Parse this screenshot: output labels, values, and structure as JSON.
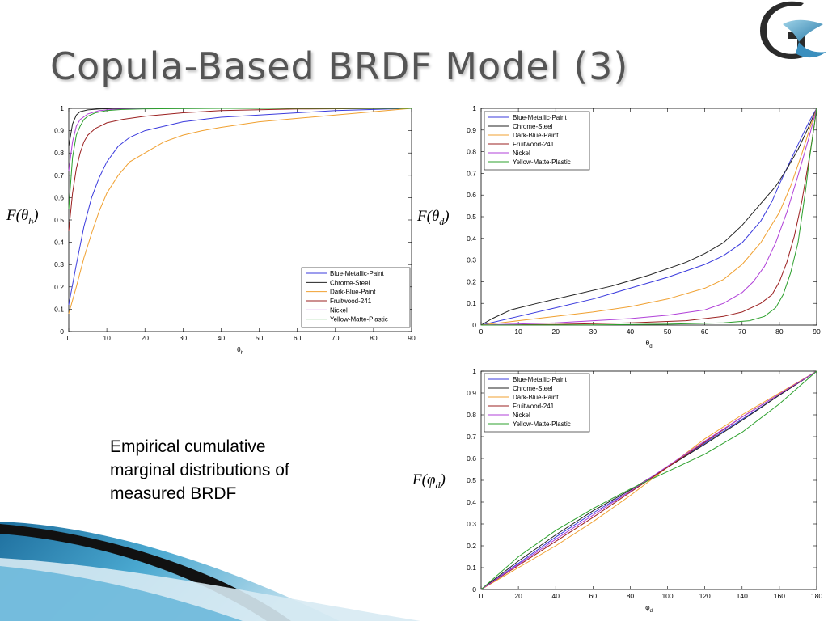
{
  "slide": {
    "title": "Copula-Based BRDF Model (3)",
    "caption_lines": [
      "Empirical cumulative",
      "marginal distributions of",
      "measured BRDF"
    ],
    "ylabels": [
      {
        "func": "F(",
        "sym": "θ",
        "sub": "h",
        "close": ")"
      },
      {
        "func": "F(",
        "sym": "θ",
        "sub": "d",
        "close": ")"
      },
      {
        "func": "F(",
        "sym": "φ",
        "sub": "d",
        "close": ")"
      }
    ]
  },
  "colors": {
    "title": "#555555",
    "Blue-Metallic-Paint": "#3b3bdd",
    "Chrome-Steel": "#222222",
    "Dark-Blue-Paint": "#f0a030",
    "Fruitwood-241": "#9b2020",
    "Nickel": "#b040d8",
    "Yellow-Matte-Plastic": "#2ca02c"
  },
  "chart_data": [
    {
      "type": "line",
      "title": "",
      "xlabel": "θh",
      "ylabel": "",
      "xlim": [
        0,
        90
      ],
      "ylim": [
        0,
        1
      ],
      "xticks": [
        0,
        10,
        20,
        30,
        40,
        50,
        60,
        70,
        80,
        90
      ],
      "yticks": [
        0,
        0.1,
        0.2,
        0.3,
        0.4,
        0.5,
        0.6,
        0.7,
        0.8,
        0.9,
        1
      ],
      "legend": "bottom-right",
      "series": [
        {
          "name": "Blue-Metallic-Paint",
          "x": [
            0,
            2,
            4,
            6,
            8,
            10,
            13,
            16,
            20,
            25,
            30,
            40,
            50,
            60,
            70,
            80,
            90
          ],
          "y": [
            0.12,
            0.3,
            0.47,
            0.6,
            0.69,
            0.76,
            0.83,
            0.87,
            0.9,
            0.92,
            0.94,
            0.96,
            0.97,
            0.98,
            0.99,
            0.995,
            1.0
          ]
        },
        {
          "name": "Chrome-Steel",
          "x": [
            0,
            1,
            2,
            3,
            5,
            8,
            12,
            20,
            30,
            90
          ],
          "y": [
            0.83,
            0.93,
            0.97,
            0.985,
            0.993,
            0.997,
            0.999,
            1.0,
            1.0,
            1.0
          ]
        },
        {
          "name": "Dark-Blue-Paint",
          "x": [
            0,
            2,
            4,
            6,
            8,
            10,
            13,
            16,
            20,
            25,
            30,
            35,
            40,
            50,
            60,
            70,
            80,
            90
          ],
          "y": [
            0.08,
            0.2,
            0.33,
            0.44,
            0.54,
            0.62,
            0.7,
            0.76,
            0.8,
            0.85,
            0.88,
            0.9,
            0.915,
            0.94,
            0.955,
            0.97,
            0.985,
            1.0
          ]
        },
        {
          "name": "Fruitwood-241",
          "x": [
            0,
            1,
            2,
            3,
            4,
            5,
            7,
            10,
            14,
            20,
            30,
            40,
            60,
            90
          ],
          "y": [
            0.45,
            0.62,
            0.73,
            0.8,
            0.85,
            0.88,
            0.91,
            0.935,
            0.95,
            0.965,
            0.98,
            0.99,
            0.997,
            1.0
          ]
        },
        {
          "name": "Nickel",
          "x": [
            0,
            1,
            2,
            3,
            5,
            8,
            12,
            20,
            40,
            90
          ],
          "y": [
            0.72,
            0.85,
            0.92,
            0.95,
            0.975,
            0.99,
            0.996,
            0.999,
            1.0,
            1.0
          ]
        },
        {
          "name": "Yellow-Matte-Plastic",
          "x": [
            0,
            1,
            2,
            3,
            4,
            5,
            7,
            10,
            14,
            20,
            40,
            90
          ],
          "y": [
            0.55,
            0.78,
            0.88,
            0.92,
            0.95,
            0.965,
            0.98,
            0.99,
            0.995,
            0.998,
            1.0,
            1.0
          ]
        }
      ]
    },
    {
      "type": "line",
      "title": "",
      "xlabel": "θd",
      "ylabel": "",
      "xlim": [
        0,
        90
      ],
      "ylim": [
        0,
        1
      ],
      "xticks": [
        0,
        10,
        20,
        30,
        40,
        50,
        60,
        70,
        80,
        90
      ],
      "yticks": [
        0,
        0.1,
        0.2,
        0.3,
        0.4,
        0.5,
        0.6,
        0.7,
        0.8,
        0.9,
        1
      ],
      "legend": "top-left",
      "series": [
        {
          "name": "Blue-Metallic-Paint",
          "x": [
            0,
            10,
            20,
            30,
            40,
            50,
            60,
            65,
            70,
            75,
            78,
            80,
            83,
            86,
            88,
            89,
            90
          ],
          "y": [
            0,
            0.04,
            0.08,
            0.12,
            0.17,
            0.22,
            0.28,
            0.32,
            0.38,
            0.48,
            0.57,
            0.65,
            0.76,
            0.87,
            0.94,
            0.97,
            1.0
          ]
        },
        {
          "name": "Chrome-Steel",
          "x": [
            0,
            3,
            8,
            15,
            25,
            35,
            45,
            55,
            60,
            65,
            70,
            73,
            76,
            79,
            82,
            85,
            88,
            90
          ],
          "y": [
            0,
            0.03,
            0.07,
            0.1,
            0.14,
            0.18,
            0.23,
            0.29,
            0.33,
            0.38,
            0.46,
            0.52,
            0.58,
            0.64,
            0.72,
            0.81,
            0.92,
            1.0
          ]
        },
        {
          "name": "Dark-Blue-Paint",
          "x": [
            0,
            10,
            20,
            30,
            40,
            50,
            60,
            65,
            70,
            75,
            80,
            83,
            86,
            88,
            90
          ],
          "y": [
            0,
            0.02,
            0.04,
            0.06,
            0.085,
            0.12,
            0.17,
            0.21,
            0.28,
            0.38,
            0.52,
            0.64,
            0.79,
            0.9,
            1.0
          ]
        },
        {
          "name": "Fruitwood-241",
          "x": [
            0,
            20,
            40,
            55,
            65,
            70,
            75,
            78,
            80,
            82,
            84,
            86,
            88,
            89,
            90
          ],
          "y": [
            0,
            0.003,
            0.01,
            0.02,
            0.04,
            0.06,
            0.1,
            0.14,
            0.2,
            0.29,
            0.41,
            0.57,
            0.77,
            0.88,
            1.0
          ]
        },
        {
          "name": "Nickel",
          "x": [
            0,
            20,
            40,
            50,
            60,
            65,
            70,
            73,
            76,
            79,
            82,
            85,
            88,
            90
          ],
          "y": [
            0,
            0.01,
            0.03,
            0.045,
            0.07,
            0.1,
            0.15,
            0.2,
            0.27,
            0.38,
            0.52,
            0.69,
            0.87,
            1.0
          ]
        },
        {
          "name": "Yellow-Matte-Plastic",
          "x": [
            0,
            30,
            50,
            65,
            72,
            76,
            79,
            81,
            83,
            85,
            86,
            87,
            88,
            89,
            90
          ],
          "y": [
            0,
            0.001,
            0.004,
            0.01,
            0.02,
            0.04,
            0.08,
            0.14,
            0.24,
            0.38,
            0.5,
            0.62,
            0.76,
            0.88,
            1.0
          ]
        }
      ]
    },
    {
      "type": "line",
      "title": "",
      "xlabel": "φd",
      "ylabel": "",
      "xlim": [
        0,
        180
      ],
      "ylim": [
        0,
        1
      ],
      "xticks": [
        0,
        20,
        40,
        60,
        80,
        100,
        120,
        140,
        160,
        180
      ],
      "yticks": [
        0,
        0.1,
        0.2,
        0.3,
        0.4,
        0.5,
        0.6,
        0.7,
        0.8,
        0.9,
        1
      ],
      "legend": "top-left",
      "series": [
        {
          "name": "Blue-Metallic-Paint",
          "x": [
            0,
            20,
            40,
            60,
            80,
            100,
            120,
            140,
            160,
            180
          ],
          "y": [
            0,
            0.12,
            0.24,
            0.35,
            0.45,
            0.56,
            0.67,
            0.78,
            0.89,
            1.0
          ]
        },
        {
          "name": "Chrome-Steel",
          "x": [
            0,
            20,
            40,
            60,
            80,
            100,
            120,
            140,
            160,
            180
          ],
          "y": [
            0,
            0.13,
            0.25,
            0.36,
            0.455,
            0.56,
            0.665,
            0.775,
            0.89,
            1.0
          ]
        },
        {
          "name": "Dark-Blue-Paint",
          "x": [
            0,
            20,
            40,
            60,
            80,
            100,
            120,
            140,
            160,
            180
          ],
          "y": [
            0,
            0.1,
            0.2,
            0.31,
            0.43,
            0.56,
            0.69,
            0.8,
            0.9,
            1.0
          ]
        },
        {
          "name": "Fruitwood-241",
          "x": [
            0,
            20,
            40,
            60,
            80,
            100,
            120,
            140,
            160,
            180
          ],
          "y": [
            0,
            0.11,
            0.22,
            0.33,
            0.445,
            0.56,
            0.675,
            0.79,
            0.895,
            1.0
          ]
        },
        {
          "name": "Nickel",
          "x": [
            0,
            20,
            40,
            60,
            80,
            100,
            120,
            140,
            160,
            180
          ],
          "y": [
            0,
            0.115,
            0.23,
            0.34,
            0.45,
            0.565,
            0.68,
            0.79,
            0.895,
            1.0
          ]
        },
        {
          "name": "Yellow-Matte-Plastic",
          "x": [
            0,
            20,
            40,
            60,
            80,
            100,
            120,
            140,
            160,
            180
          ],
          "y": [
            0,
            0.15,
            0.27,
            0.37,
            0.46,
            0.54,
            0.62,
            0.72,
            0.85,
            1.0
          ]
        }
      ]
    }
  ]
}
